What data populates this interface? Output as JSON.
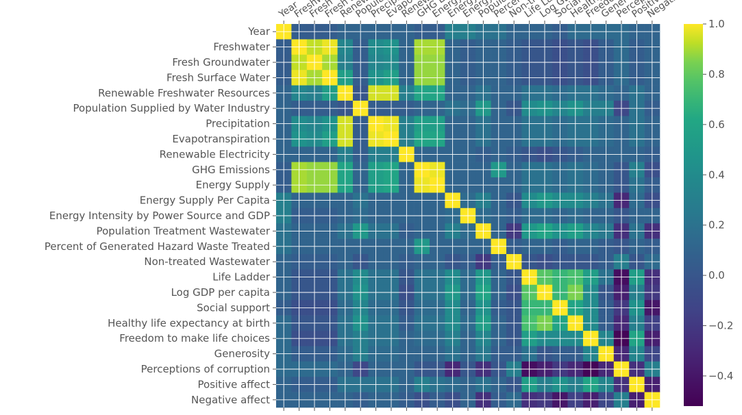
{
  "chart_data": {
    "type": "heatmap",
    "colormap": "viridis",
    "grid": true,
    "grid_color": "#ffffff",
    "variables": [
      "Year",
      "Freshwater",
      "Fresh Groundwater",
      "Fresh Surface Water",
      "Renewable Freshwater Resources",
      "Population Supplied by Water Industry",
      "Precipitation",
      "Evapotranspiration",
      "Renewable Electricity",
      "GHG Emissions",
      "Energy Supply",
      "Energy Supply Per Capita",
      "Energy Intensity by Power Source and GDP",
      "Population Treatment Wastewater",
      "Percent of Generated Hazard Waste Treated",
      "Non-treated Wastewater",
      "Life Ladder",
      "Log GDP per capita",
      "Social support",
      "Healthy life expectancy at birth",
      "Freedom to make life choices",
      "Generosity",
      "Perceptions of corruption",
      "Positive affect",
      "Negative affect"
    ],
    "column_labels": [
      "Year",
      "Freshwater",
      "Fresh Groundwater",
      "Fresh Surface Water",
      "Renewable Freshwater Resources",
      "Population Supplied by Water Industry",
      "Precipitation",
      "Evapotranspiration",
      "Renewable Electricity",
      "GHG Emissions",
      "Energy Supply",
      "Energy Supply Per Capita",
      "Energy Intensity by Power Source and GDP",
      "Population Treatment Wastewater",
      "Percent of Generated Hazard Waste Treated",
      "Non-treated Wastewater",
      "Life Ladder",
      "Log GDP per capita",
      "Social support",
      "Healthy life expectancy at birth",
      "Freedom to make life choices",
      "Generosity",
      "Perceptions of corruption",
      "Positive affect",
      "Negative affect"
    ],
    "colorbar": {
      "range": [
        -0.52,
        1.0
      ],
      "ticks": [
        1.0,
        0.8,
        0.6,
        0.4,
        0.2,
        0.0,
        -0.2,
        -0.4
      ],
      "tick_labels": [
        "1.0",
        "0.8",
        "0.6",
        "0.4",
        "0.2",
        "0.0",
        "−0.2",
        "−0.4"
      ]
    },
    "values": [
      [
        1.0,
        0.05,
        0.04,
        0.05,
        0.1,
        0.1,
        0.1,
        0.1,
        0.1,
        0.05,
        0.05,
        0.3,
        0.3,
        0.2,
        0.2,
        0.1,
        0.1,
        0.1,
        0.05,
        0.15,
        0.15,
        0.15,
        0.15,
        0.1,
        0.1
      ],
      [
        0.05,
        1.0,
        0.93,
        0.98,
        0.35,
        0.05,
        0.4,
        0.45,
        0.1,
        0.9,
        0.9,
        0.1,
        0.05,
        0.1,
        0.1,
        0.05,
        0.0,
        0.0,
        -0.05,
        0.0,
        -0.05,
        0.05,
        0.15,
        0.05,
        0.1
      ],
      [
        0.04,
        0.93,
        1.0,
        0.9,
        0.3,
        0.05,
        0.35,
        0.4,
        0.1,
        0.88,
        0.88,
        0.1,
        0.05,
        0.1,
        0.1,
        0.05,
        0.0,
        0.0,
        -0.05,
        0.0,
        -0.05,
        0.05,
        0.15,
        0.05,
        0.1
      ],
      [
        0.05,
        0.98,
        0.9,
        1.0,
        0.55,
        0.05,
        0.45,
        0.55,
        0.1,
        0.88,
        0.88,
        0.1,
        0.05,
        0.1,
        0.1,
        0.05,
        0.0,
        0.0,
        -0.05,
        0.0,
        -0.05,
        0.05,
        0.15,
        0.05,
        0.1
      ],
      [
        0.1,
        0.35,
        0.3,
        0.55,
        1.0,
        0.0,
        0.95,
        0.95,
        0.3,
        0.6,
        0.6,
        0.1,
        0.1,
        0.2,
        0.1,
        0.1,
        0.2,
        0.2,
        0.15,
        0.2,
        0.2,
        0.15,
        0.1,
        0.2,
        0.1
      ],
      [
        0.1,
        0.05,
        0.05,
        0.05,
        0.0,
        1.0,
        0.05,
        0.05,
        0.05,
        0.1,
        0.1,
        0.2,
        0.15,
        0.5,
        0.1,
        0.0,
        0.4,
        0.45,
        0.35,
        0.45,
        0.3,
        0.3,
        -0.1,
        0.2,
        0.05
      ],
      [
        0.1,
        0.4,
        0.35,
        0.45,
        0.95,
        0.05,
        1.0,
        0.98,
        0.3,
        0.55,
        0.55,
        0.1,
        0.1,
        0.2,
        0.1,
        0.1,
        0.2,
        0.2,
        0.15,
        0.2,
        0.2,
        0.15,
        0.1,
        0.2,
        0.1
      ],
      [
        0.1,
        0.45,
        0.4,
        0.55,
        0.95,
        0.05,
        0.98,
        1.0,
        0.3,
        0.6,
        0.6,
        0.1,
        0.1,
        0.2,
        0.1,
        0.1,
        0.2,
        0.2,
        0.15,
        0.2,
        0.2,
        0.15,
        0.1,
        0.2,
        0.1
      ],
      [
        0.1,
        0.1,
        0.1,
        0.1,
        0.3,
        0.05,
        0.3,
        0.3,
        1.0,
        0.1,
        0.1,
        0.1,
        0.1,
        0.05,
        0.1,
        0.05,
        0.0,
        -0.05,
        0.0,
        0.05,
        0.1,
        0.1,
        0.1,
        0.1,
        0.05
      ],
      [
        0.05,
        0.9,
        0.88,
        0.88,
        0.6,
        0.1,
        0.55,
        0.6,
        0.1,
        1.0,
        0.98,
        0.1,
        0.1,
        0.1,
        0.5,
        0.1,
        0.2,
        0.2,
        0.15,
        0.2,
        0.15,
        0.1,
        0.0,
        0.3,
        -0.05
      ],
      [
        0.05,
        0.9,
        0.88,
        0.88,
        0.6,
        0.1,
        0.55,
        0.6,
        0.1,
        0.98,
        1.0,
        0.1,
        0.1,
        0.1,
        0.1,
        0.1,
        0.2,
        0.2,
        0.15,
        0.2,
        0.15,
        0.1,
        0.0,
        0.2,
        0.05
      ],
      [
        0.3,
        0.1,
        0.1,
        0.1,
        0.1,
        0.2,
        0.1,
        0.1,
        0.1,
        0.1,
        0.1,
        1.0,
        0.15,
        0.3,
        0.1,
        0.0,
        0.4,
        0.5,
        0.4,
        0.4,
        0.3,
        0.2,
        -0.3,
        0.15,
        -0.05
      ],
      [
        0.3,
        0.05,
        0.05,
        0.05,
        0.1,
        0.15,
        0.1,
        0.1,
        0.1,
        0.1,
        0.1,
        0.15,
        1.0,
        0.15,
        0.1,
        0.05,
        0.15,
        0.15,
        0.1,
        0.15,
        0.1,
        0.1,
        0.0,
        0.1,
        0.1
      ],
      [
        0.2,
        0.1,
        0.1,
        0.1,
        0.2,
        0.5,
        0.2,
        0.2,
        0.05,
        0.1,
        0.1,
        0.3,
        0.15,
        1.0,
        0.1,
        -0.2,
        0.5,
        0.6,
        0.45,
        0.55,
        0.35,
        0.25,
        -0.25,
        0.2,
        -0.25
      ],
      [
        0.2,
        0.1,
        0.1,
        0.1,
        0.1,
        0.1,
        0.1,
        0.1,
        0.1,
        0.5,
        0.1,
        0.1,
        0.1,
        0.1,
        1.0,
        0.05,
        0.1,
        0.1,
        0.05,
        0.1,
        0.1,
        0.05,
        0.0,
        0.1,
        0.05
      ],
      [
        0.1,
        0.05,
        0.05,
        0.05,
        0.1,
        0.0,
        0.1,
        0.1,
        0.05,
        0.1,
        0.1,
        0.0,
        0.05,
        -0.2,
        0.05,
        1.0,
        0.0,
        -0.05,
        0.0,
        0.0,
        0.0,
        0.05,
        0.3,
        0.0,
        0.15
      ],
      [
        0.1,
        0.0,
        0.0,
        0.0,
        0.2,
        0.4,
        0.2,
        0.2,
        0.0,
        0.2,
        0.2,
        0.4,
        0.15,
        0.5,
        0.1,
        0.0,
        1.0,
        0.78,
        0.7,
        0.75,
        0.55,
        0.2,
        -0.45,
        0.55,
        -0.25
      ],
      [
        0.1,
        0.0,
        0.0,
        0.0,
        0.2,
        0.45,
        0.2,
        0.2,
        -0.05,
        0.2,
        0.2,
        0.5,
        0.15,
        0.6,
        0.1,
        -0.05,
        0.78,
        1.0,
        0.7,
        0.85,
        0.4,
        0.0,
        -0.35,
        0.3,
        -0.2
      ],
      [
        0.05,
        -0.05,
        -0.05,
        -0.05,
        0.15,
        0.35,
        0.15,
        0.15,
        0.0,
        0.15,
        0.15,
        0.4,
        0.1,
        0.45,
        0.05,
        0.0,
        0.7,
        0.7,
        1.0,
        0.6,
        0.4,
        0.05,
        -0.2,
        0.45,
        -0.4
      ],
      [
        0.15,
        0.0,
        0.0,
        0.0,
        0.2,
        0.45,
        0.2,
        0.2,
        0.05,
        0.2,
        0.2,
        0.4,
        0.15,
        0.55,
        0.1,
        0.0,
        0.75,
        0.85,
        0.6,
        1.0,
        0.4,
        0.05,
        -0.3,
        0.3,
        -0.15
      ],
      [
        0.15,
        -0.05,
        -0.05,
        -0.05,
        0.2,
        0.3,
        0.2,
        0.2,
        0.1,
        0.15,
        0.15,
        0.3,
        0.1,
        0.35,
        0.1,
        0.0,
        0.55,
        0.4,
        0.4,
        0.4,
        1.0,
        0.35,
        -0.5,
        0.6,
        -0.35
      ],
      [
        0.15,
        0.05,
        0.05,
        0.05,
        0.15,
        0.3,
        0.15,
        0.15,
        0.1,
        0.1,
        0.1,
        0.2,
        0.1,
        0.25,
        0.05,
        0.05,
        0.2,
        0.0,
        0.05,
        0.05,
        0.35,
        1.0,
        -0.3,
        0.35,
        -0.1
      ],
      [
        0.15,
        0.15,
        0.15,
        0.15,
        0.1,
        -0.1,
        0.1,
        0.1,
        0.1,
        0.0,
        0.0,
        -0.3,
        0.0,
        -0.25,
        0.0,
        0.3,
        -0.45,
        -0.35,
        -0.2,
        -0.3,
        -0.5,
        -0.3,
        1.0,
        -0.25,
        0.3
      ],
      [
        0.1,
        0.05,
        0.05,
        0.05,
        0.2,
        0.2,
        0.2,
        0.2,
        0.1,
        0.3,
        0.2,
        0.15,
        0.1,
        0.2,
        0.1,
        0.0,
        0.55,
        0.3,
        0.45,
        0.3,
        0.6,
        0.35,
        -0.25,
        1.0,
        -0.35
      ],
      [
        0.1,
        0.1,
        0.1,
        0.1,
        0.1,
        0.05,
        0.1,
        0.1,
        0.05,
        -0.05,
        0.05,
        -0.05,
        0.1,
        -0.25,
        0.05,
        0.15,
        -0.25,
        -0.2,
        -0.4,
        -0.15,
        -0.35,
        -0.1,
        0.3,
        -0.35,
        1.0
      ]
    ]
  }
}
